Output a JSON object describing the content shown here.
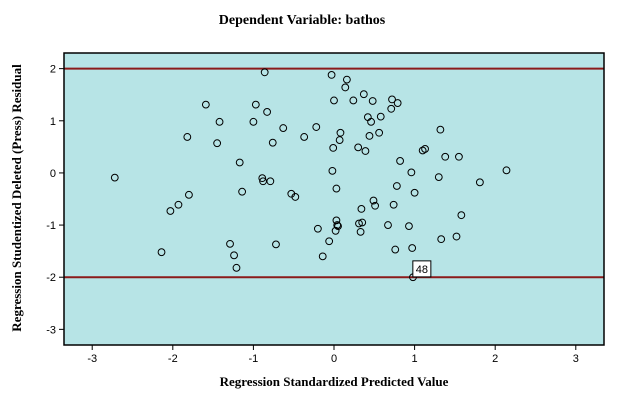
{
  "chart_data": {
    "type": "scatter",
    "title": "Dependent Variable: bathos",
    "xlabel": "Regression Standardized Predicted Value",
    "ylabel": "Regression Studentized Deleted (Press) Residual",
    "xlim": [
      -3.35,
      3.35
    ],
    "ylim": [
      -3.3,
      2.3
    ],
    "x_ticks": [
      -3,
      -2,
      -1,
      0,
      1,
      2,
      3
    ],
    "y_ticks": [
      -3,
      -2,
      -1,
      0,
      1,
      2
    ],
    "grid": false,
    "legend": "none",
    "colors": {
      "plot_background": "#b7e4e6",
      "reference_line": "#8b1a1a",
      "marker": "#000000",
      "frame": "#000000"
    },
    "reference_lines_y": [
      2,
      -2
    ],
    "annotations": [
      {
        "text": "48",
        "x": 1.09,
        "y": -1.84
      }
    ],
    "points": [
      {
        "x": -2.72,
        "y": -0.09
      },
      {
        "x": -2.14,
        "y": -1.52
      },
      {
        "x": -2.03,
        "y": -0.73
      },
      {
        "x": -1.93,
        "y": -0.61
      },
      {
        "x": -1.82,
        "y": 0.69
      },
      {
        "x": -1.8,
        "y": -0.42
      },
      {
        "x": -1.59,
        "y": 1.31
      },
      {
        "x": -1.45,
        "y": 0.57
      },
      {
        "x": -1.42,
        "y": 0.98
      },
      {
        "x": -1.29,
        "y": -1.36
      },
      {
        "x": -1.24,
        "y": -1.58
      },
      {
        "x": -1.21,
        "y": -1.82
      },
      {
        "x": -1.17,
        "y": 0.2
      },
      {
        "x": -1.14,
        "y": -0.36
      },
      {
        "x": -1.0,
        "y": 0.98
      },
      {
        "x": -0.97,
        "y": 1.31
      },
      {
        "x": -0.89,
        "y": -0.1
      },
      {
        "x": -0.88,
        "y": -0.16
      },
      {
        "x": -0.86,
        "y": 1.93
      },
      {
        "x": -0.83,
        "y": 1.17
      },
      {
        "x": -0.79,
        "y": -0.16
      },
      {
        "x": -0.76,
        "y": 0.58
      },
      {
        "x": -0.72,
        "y": -1.37
      },
      {
        "x": -0.63,
        "y": 0.86
      },
      {
        "x": -0.53,
        "y": -0.4
      },
      {
        "x": -0.48,
        "y": -0.46
      },
      {
        "x": -0.37,
        "y": 0.69
      },
      {
        "x": -0.22,
        "y": 0.88
      },
      {
        "x": -0.2,
        "y": -1.07
      },
      {
        "x": -0.14,
        "y": -1.6
      },
      {
        "x": -0.06,
        "y": -1.31
      },
      {
        "x": -0.03,
        "y": 1.88
      },
      {
        "x": -0.02,
        "y": 0.04
      },
      {
        "x": -0.01,
        "y": 0.48
      },
      {
        "x": 0.0,
        "y": 1.39
      },
      {
        "x": 0.02,
        "y": -1.11
      },
      {
        "x": 0.03,
        "y": -0.3
      },
      {
        "x": 0.03,
        "y": -0.91
      },
      {
        "x": 0.04,
        "y": -1.0
      },
      {
        "x": 0.05,
        "y": -1.02
      },
      {
        "x": 0.07,
        "y": 0.63
      },
      {
        "x": 0.08,
        "y": 0.77
      },
      {
        "x": 0.14,
        "y": 1.64
      },
      {
        "x": 0.16,
        "y": 1.79
      },
      {
        "x": 0.24,
        "y": 1.39
      },
      {
        "x": 0.3,
        "y": 0.49
      },
      {
        "x": 0.31,
        "y": -0.97
      },
      {
        "x": 0.33,
        "y": -1.13
      },
      {
        "x": 0.34,
        "y": -0.69
      },
      {
        "x": 0.35,
        "y": -0.95
      },
      {
        "x": 0.37,
        "y": 1.51
      },
      {
        "x": 0.39,
        "y": 0.42
      },
      {
        "x": 0.42,
        "y": 1.07
      },
      {
        "x": 0.44,
        "y": 0.71
      },
      {
        "x": 0.46,
        "y": 0.98
      },
      {
        "x": 0.48,
        "y": 1.38
      },
      {
        "x": 0.49,
        "y": -0.53
      },
      {
        "x": 0.51,
        "y": -0.63
      },
      {
        "x": 0.56,
        "y": 0.77
      },
      {
        "x": 0.58,
        "y": 1.08
      },
      {
        "x": 0.67,
        "y": -1.0
      },
      {
        "x": 0.71,
        "y": 1.23
      },
      {
        "x": 0.72,
        "y": 1.41
      },
      {
        "x": 0.74,
        "y": -0.61
      },
      {
        "x": 0.76,
        "y": -1.47
      },
      {
        "x": 0.78,
        "y": -0.25
      },
      {
        "x": 0.79,
        "y": 1.34
      },
      {
        "x": 0.82,
        "y": 0.23
      },
      {
        "x": 0.93,
        "y": -1.02
      },
      {
        "x": 0.96,
        "y": 0.01
      },
      {
        "x": 0.97,
        "y": -1.44
      },
      {
        "x": 0.98,
        "y": -2.0
      },
      {
        "x": 1.0,
        "y": -0.38
      },
      {
        "x": 1.1,
        "y": 0.43
      },
      {
        "x": 1.13,
        "y": 0.46
      },
      {
        "x": 1.3,
        "y": -0.08
      },
      {
        "x": 1.32,
        "y": 0.83
      },
      {
        "x": 1.33,
        "y": -1.27
      },
      {
        "x": 1.38,
        "y": 0.31
      },
      {
        "x": 1.52,
        "y": -1.22
      },
      {
        "x": 1.55,
        "y": 0.31
      },
      {
        "x": 1.58,
        "y": -0.81
      },
      {
        "x": 1.81,
        "y": -0.18
      },
      {
        "x": 2.14,
        "y": 0.05
      }
    ]
  }
}
